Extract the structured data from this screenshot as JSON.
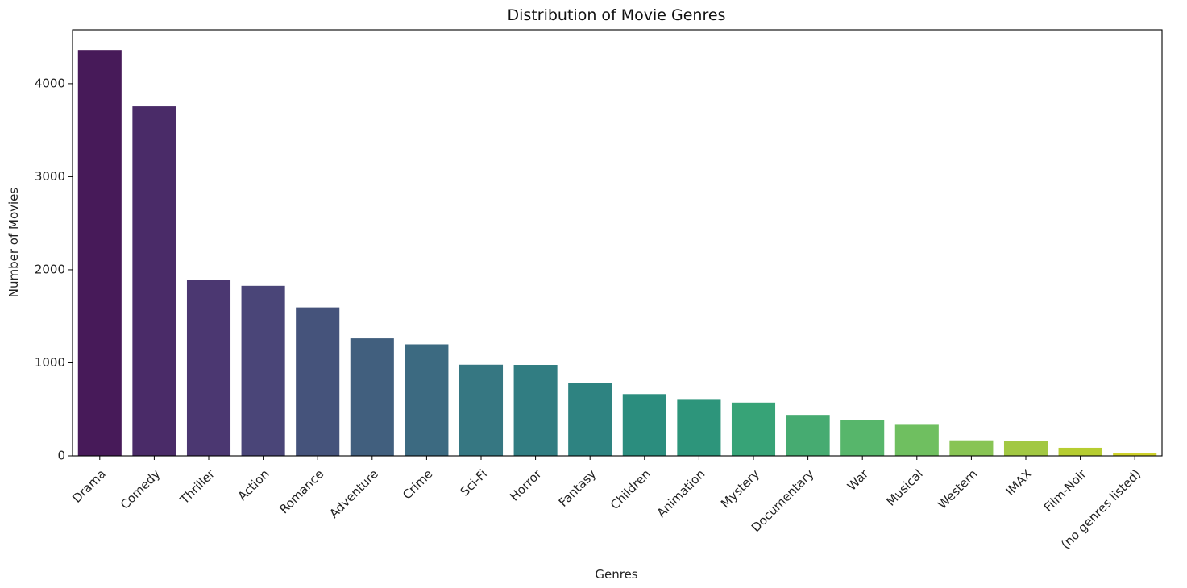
{
  "chart_data": {
    "type": "bar",
    "title": "Distribution of Movie Genres",
    "xlabel": "Genres",
    "ylabel": "Number of Movies",
    "categories": [
      "Drama",
      "Comedy",
      "Thriller",
      "Action",
      "Romance",
      "Adventure",
      "Crime",
      "Sci-Fi",
      "Horror",
      "Fantasy",
      "Children",
      "Animation",
      "Mystery",
      "Documentary",
      "War",
      "Musical",
      "Western",
      "IMAX",
      "Film-Noir",
      "(no genres listed)"
    ],
    "values": [
      4361,
      3756,
      1894,
      1828,
      1596,
      1263,
      1199,
      980,
      978,
      779,
      664,
      611,
      573,
      440,
      382,
      334,
      167,
      158,
      87,
      34
    ],
    "colors": [
      "#471a59",
      "#4a2b68",
      "#4b3771",
      "#4a4578",
      "#45537b",
      "#415f7e",
      "#3c6a81",
      "#367782",
      "#317d82",
      "#2e8381",
      "#2b8d7e",
      "#2d957b",
      "#37a377",
      "#46ab71",
      "#57b66b",
      "#6fbf60",
      "#88c454",
      "#a2c843",
      "#b6cd31",
      "#cfd22b"
    ],
    "ylim": [
      0,
      4579
    ],
    "yticks": [
      0,
      1000,
      2000,
      3000,
      4000
    ],
    "grid": false,
    "legend": "none"
  }
}
